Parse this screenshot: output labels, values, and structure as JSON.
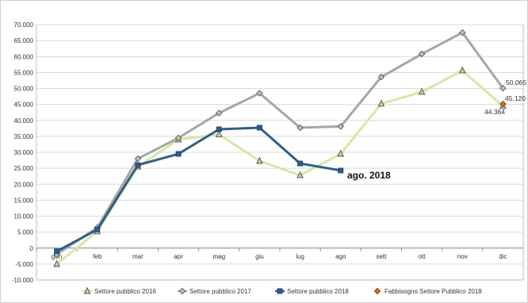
{
  "chart_data": {
    "type": "line",
    "title": "",
    "xlabel": "",
    "ylabel": "",
    "categories": [
      "gen",
      "feb",
      "mar",
      "apr",
      "mag",
      "giu",
      "lug",
      "ago",
      "sett",
      "ott",
      "nov",
      "dic"
    ],
    "ylim": [
      -10000,
      70000
    ],
    "yticks": [
      -10000,
      -5000,
      0,
      5000,
      10000,
      15000,
      20000,
      25000,
      30000,
      35000,
      40000,
      45000,
      50000,
      55000,
      60000,
      65000,
      70000
    ],
    "ytick_labels": [
      "-10.000",
      "-5.000",
      "0",
      "5.000",
      "10.000",
      "15.000",
      "20.000",
      "25.000",
      "30.000",
      "35.000",
      "40.000",
      "45.000",
      "50.000",
      "55.000",
      "60.000",
      "65.000",
      "70.000"
    ],
    "grid": "horizontal",
    "legend_position": "bottom",
    "series": [
      {
        "name": "Settore pubblico 2016",
        "color": "#d7e7a6",
        "marker": "triangle",
        "marker_fill": "#c3d69b",
        "values": [
          -5000,
          5200,
          25500,
          34000,
          35600,
          27300,
          22800,
          29500,
          45200,
          48900,
          55600,
          44500
        ]
      },
      {
        "name": "Settore pubblico 2017",
        "color": "#a6a6a6",
        "marker": "diamond",
        "marker_fill": "#bfbfbf",
        "values": [
          -2000,
          6400,
          28000,
          34500,
          42300,
          48500,
          37700,
          38100,
          53600,
          60800,
          67500,
          50065
        ]
      },
      {
        "name": "Settore pubblico 2018",
        "color": "#2f5d8a",
        "marker": "square",
        "marker_fill": "#2f5d8a",
        "values": [
          -1000,
          5800,
          26000,
          29500,
          37200,
          37700,
          26500,
          24300,
          null,
          null,
          null,
          null
        ]
      },
      {
        "name": "Fabbisogno Settore Pubblico 2018",
        "color": "#c0504d",
        "marker": "diamond",
        "marker_fill": "#e46c0a",
        "values": [
          null,
          null,
          null,
          null,
          null,
          null,
          null,
          null,
          null,
          null,
          null,
          45120
        ]
      }
    ],
    "annotations": [
      {
        "text": "50.065",
        "category": "dic"
      },
      {
        "text": "45.120",
        "category": "dic"
      },
      {
        "text": "44.364",
        "category": "dic"
      },
      {
        "text": "ago. 2018",
        "category": "ago",
        "bold": true
      }
    ]
  }
}
